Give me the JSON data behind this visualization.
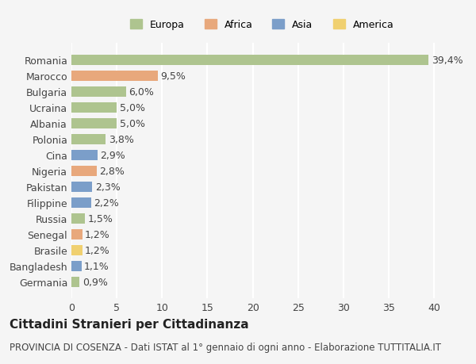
{
  "categories": [
    "Germania",
    "Bangladesh",
    "Brasile",
    "Senegal",
    "Russia",
    "Filippine",
    "Pakistan",
    "Nigeria",
    "Cina",
    "Polonia",
    "Albania",
    "Ucraina",
    "Bulgaria",
    "Marocco",
    "Romania"
  ],
  "values": [
    0.9,
    1.1,
    1.2,
    1.2,
    1.5,
    2.2,
    2.3,
    2.8,
    2.9,
    3.8,
    5.0,
    5.0,
    6.0,
    9.5,
    39.4
  ],
  "labels": [
    "0,9%",
    "1,1%",
    "1,2%",
    "1,2%",
    "1,5%",
    "2,2%",
    "2,3%",
    "2,8%",
    "2,9%",
    "3,8%",
    "5,0%",
    "5,0%",
    "6,0%",
    "9,5%",
    "39,4%"
  ],
  "continents": [
    "Europa",
    "Asia",
    "America",
    "Africa",
    "Europa",
    "Asia",
    "Asia",
    "Africa",
    "Asia",
    "Europa",
    "Europa",
    "Europa",
    "Europa",
    "Africa",
    "Europa"
  ],
  "continent_colors": {
    "Europa": "#aec48f",
    "Africa": "#e8a87c",
    "Asia": "#7b9ec9",
    "America": "#f0d070"
  },
  "legend_order": [
    "Europa",
    "Africa",
    "Asia",
    "America"
  ],
  "title": "Cittadini Stranieri per Cittadinanza",
  "subtitle": "PROVINCIA DI COSENZA - Dati ISTAT al 1° gennaio di ogni anno - Elaborazione TUTTITALIA.IT",
  "xlim": [
    0,
    42
  ],
  "xticks": [
    0,
    5,
    10,
    15,
    20,
    25,
    30,
    35,
    40
  ],
  "background_color": "#f5f5f5",
  "grid_color": "#ffffff",
  "bar_height": 0.65,
  "label_fontsize": 9,
  "title_fontsize": 11,
  "subtitle_fontsize": 8.5,
  "tick_fontsize": 9,
  "legend_fontsize": 9
}
